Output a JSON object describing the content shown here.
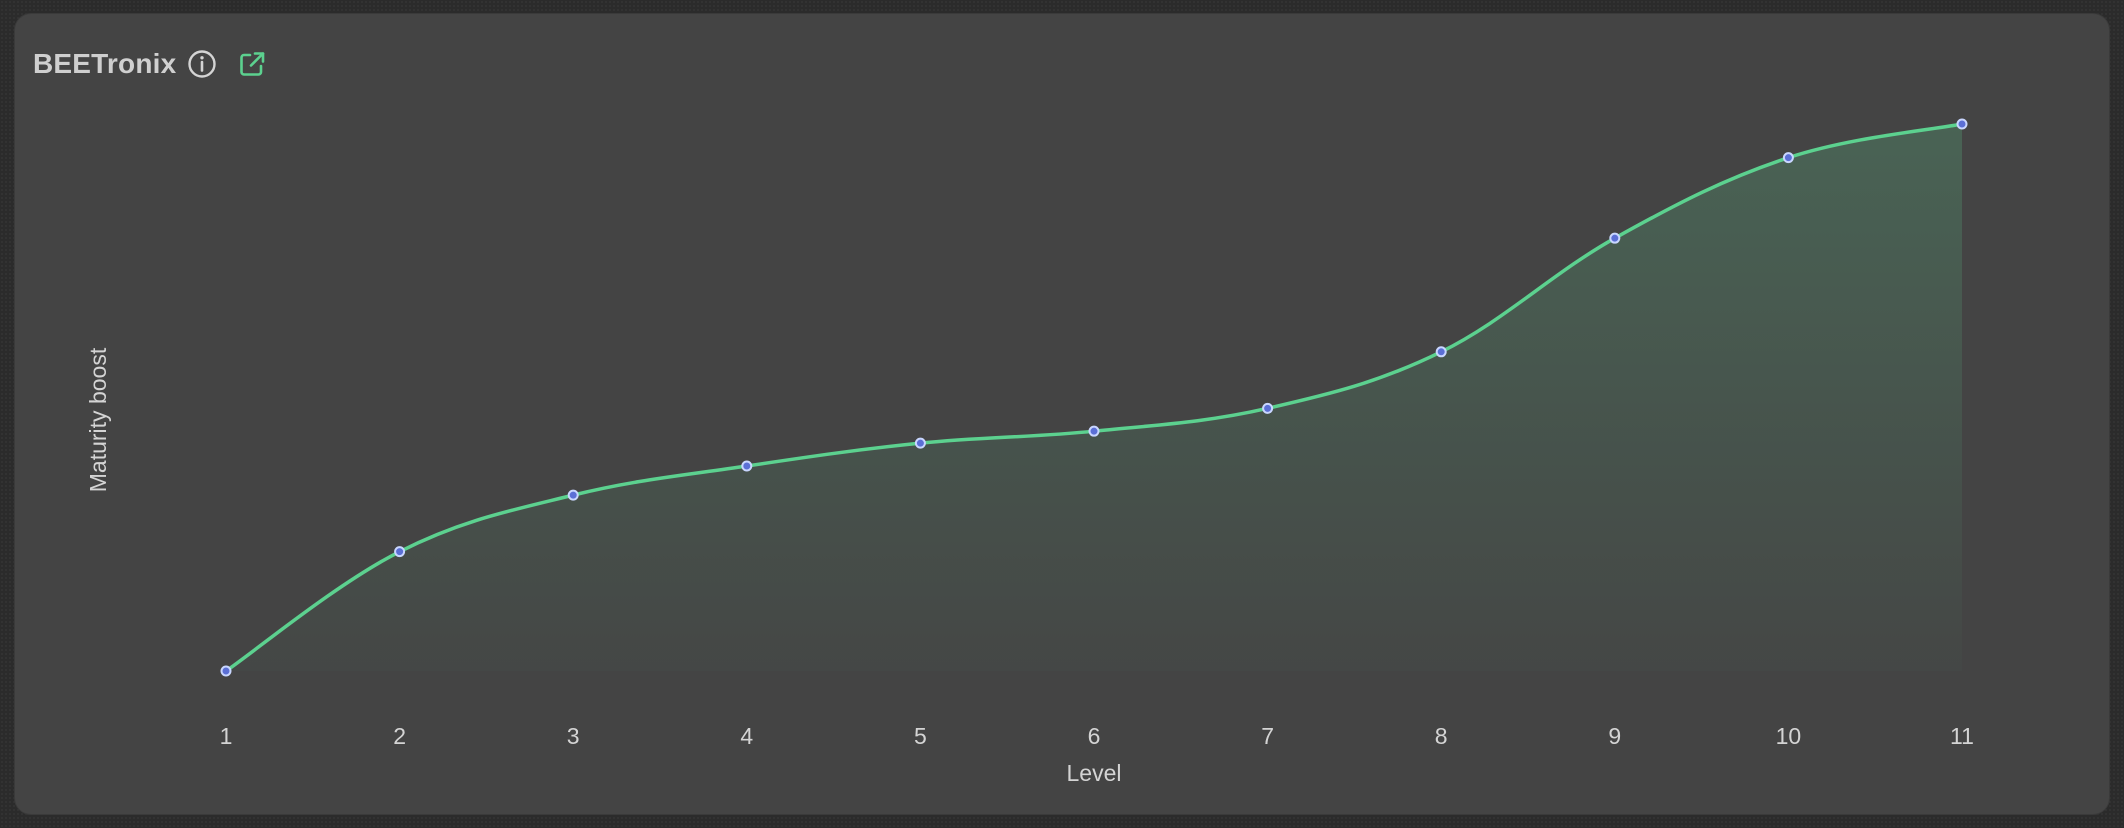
{
  "header": {
    "title": "BEETronix",
    "info_icon": "info-circle-icon",
    "link_icon": "external-link-icon"
  },
  "colors": {
    "card_background": "#444444",
    "line": "#5cd18f",
    "point_fill": "#5b6fd6",
    "point_stroke": "#c9d6ff",
    "text": "#d4d4d4"
  },
  "chart_data": {
    "type": "area",
    "x": [
      1,
      2,
      3,
      4,
      5,
      6,
      7,
      8,
      9,
      10,
      11
    ],
    "series": [
      {
        "values": [
          0,
          0.209,
          0.308,
          0.359,
          0.399,
          0.42,
          0.46,
          0.559,
          0.758,
          0.899,
          0.958
        ]
      }
    ],
    "xlabel": "Level",
    "ylabel": "Maturity boost",
    "x_tick_labels": [
      "1",
      "2",
      "3",
      "4",
      "5",
      "6",
      "7",
      "8",
      "9",
      "10",
      "11"
    ],
    "y_ticks_shown": false,
    "ylim": [
      0,
      1
    ],
    "grid": false,
    "legend": false,
    "curve": "smooth"
  }
}
